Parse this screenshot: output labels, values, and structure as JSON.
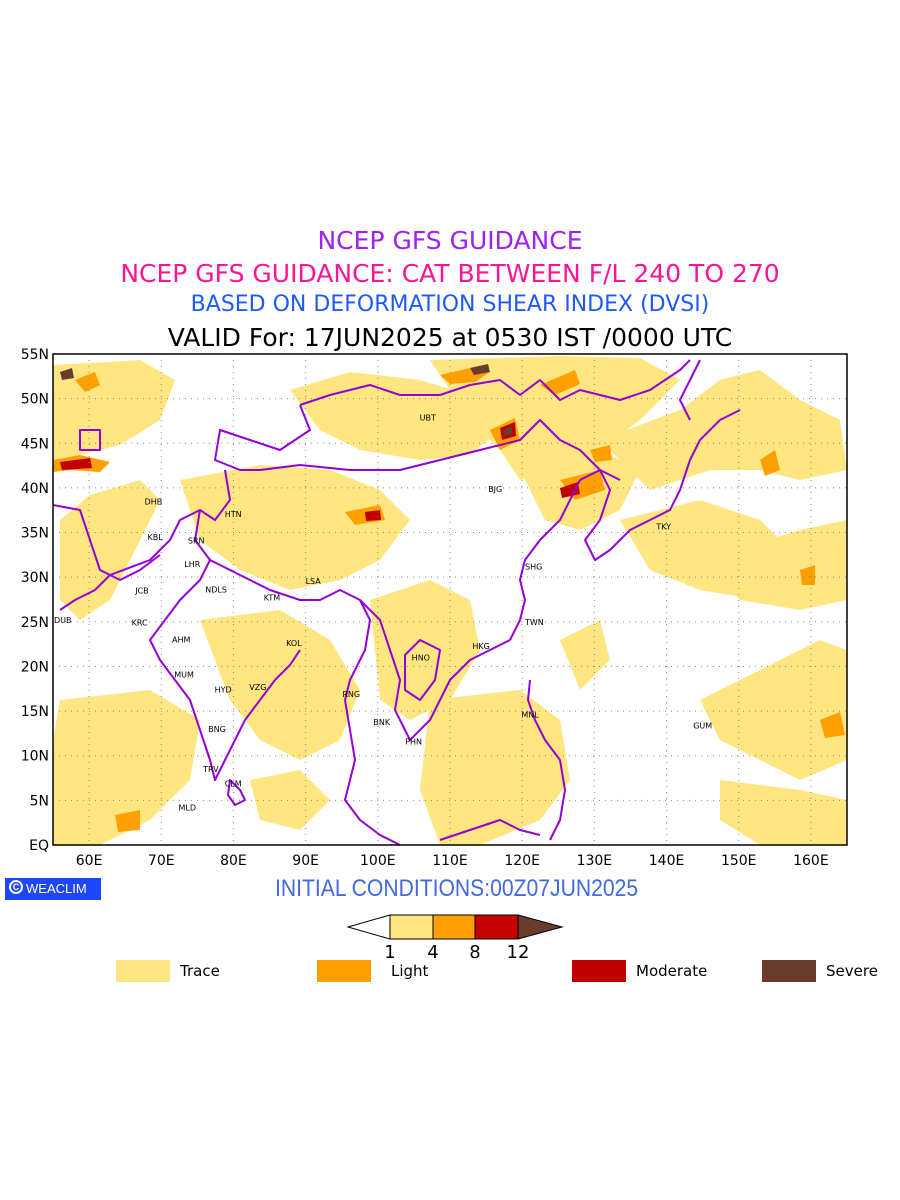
{
  "titles": {
    "line1": "NCEP GFS GUIDANCE",
    "line2": "NCEP GFS GUIDANCE: CAT BETWEEN F/L 240 TO 270",
    "line3": "BASED ON DEFORMATION SHEAR INDEX (DVSI)",
    "line4": "VALID For: 17JUN2025 at 0530 IST /0000 UTC"
  },
  "initial_conditions": "INITIAL CONDITIONS:00Z07JUN2025",
  "logo": {
    "text": "WEACLIM",
    "color": "#1e46ff"
  },
  "map": {
    "lat_range": [
      0,
      55
    ],
    "lon_range": [
      55,
      165
    ],
    "lat_labels": [
      "55N",
      "50N",
      "45N",
      "40N",
      "35N",
      "30N",
      "25N",
      "20N",
      "15N",
      "10N",
      "5N",
      "EQ"
    ],
    "lon_labels": [
      "60E",
      "70E",
      "80E",
      "90E",
      "100E",
      "110E",
      "120E",
      "130E",
      "140E",
      "150E",
      "160E"
    ],
    "grid": true,
    "border_color": "#9400d3",
    "cities": [
      {
        "code": "UBT",
        "lon": 106.9,
        "lat": 47.9
      },
      {
        "code": "BJG",
        "lon": 116.4,
        "lat": 39.9
      },
      {
        "code": "DHB",
        "lon": 68.8,
        "lat": 38.5
      },
      {
        "code": "HTN",
        "lon": 79.9,
        "lat": 37.1
      },
      {
        "code": "KBL",
        "lon": 69.2,
        "lat": 34.5
      },
      {
        "code": "SRN",
        "lon": 74.8,
        "lat": 34.1
      },
      {
        "code": "LHR",
        "lon": 74.3,
        "lat": 31.5
      },
      {
        "code": "TKY",
        "lon": 139.7,
        "lat": 35.7
      },
      {
        "code": "SHG",
        "lon": 121.5,
        "lat": 31.2
      },
      {
        "code": "LSA",
        "lon": 91.1,
        "lat": 29.6
      },
      {
        "code": "JCB",
        "lon": 67.5,
        "lat": 28.5
      },
      {
        "code": "NDLS",
        "lon": 77.2,
        "lat": 28.6
      },
      {
        "code": "KTM",
        "lon": 85.3,
        "lat": 27.7
      },
      {
        "code": "DUB",
        "lon": 55.3,
        "lat": 25.2
      },
      {
        "code": "KRC",
        "lon": 67.0,
        "lat": 24.9
      },
      {
        "code": "TWN",
        "lon": 121.5,
        "lat": 25.0
      },
      {
        "code": "AHM",
        "lon": 72.6,
        "lat": 23.0
      },
      {
        "code": "KOL",
        "lon": 88.4,
        "lat": 22.6
      },
      {
        "code": "HKG",
        "lon": 114.2,
        "lat": 22.3
      },
      {
        "code": "HNO",
        "lon": 105.8,
        "lat": 21.0
      },
      {
        "code": "MUM",
        "lon": 72.9,
        "lat": 19.1
      },
      {
        "code": "HYD",
        "lon": 78.5,
        "lat": 17.4
      },
      {
        "code": "VZG",
        "lon": 83.3,
        "lat": 17.7
      },
      {
        "code": "RNG",
        "lon": 96.2,
        "lat": 16.9
      },
      {
        "code": "MNL",
        "lon": 121.0,
        "lat": 14.6
      },
      {
        "code": "BNK",
        "lon": 100.5,
        "lat": 13.8
      },
      {
        "code": "GUM",
        "lon": 144.8,
        "lat": 13.4
      },
      {
        "code": "BNG",
        "lon": 77.6,
        "lat": 13.0
      },
      {
        "code": "PHN",
        "lon": 104.9,
        "lat": 11.6
      },
      {
        "code": "TRV",
        "lon": 76.9,
        "lat": 8.5
      },
      {
        "code": "CLM",
        "lon": 79.9,
        "lat": 6.9
      },
      {
        "code": "MLD",
        "lon": 73.5,
        "lat": 4.2
      }
    ]
  },
  "colorbar": {
    "ticks": [
      "1",
      "4",
      "8",
      "12"
    ],
    "colors": [
      "#ffffff",
      "#ffe680",
      "#ffa000",
      "#c80000",
      "#6b3b2e"
    ]
  },
  "legend": [
    {
      "label": "Trace",
      "color": "#ffe680"
    },
    {
      "label": "Light",
      "color": "#ffa000"
    },
    {
      "label": "Moderate",
      "color": "#c00000"
    },
    {
      "label": "Severe",
      "color": "#6b3b2e"
    }
  ]
}
